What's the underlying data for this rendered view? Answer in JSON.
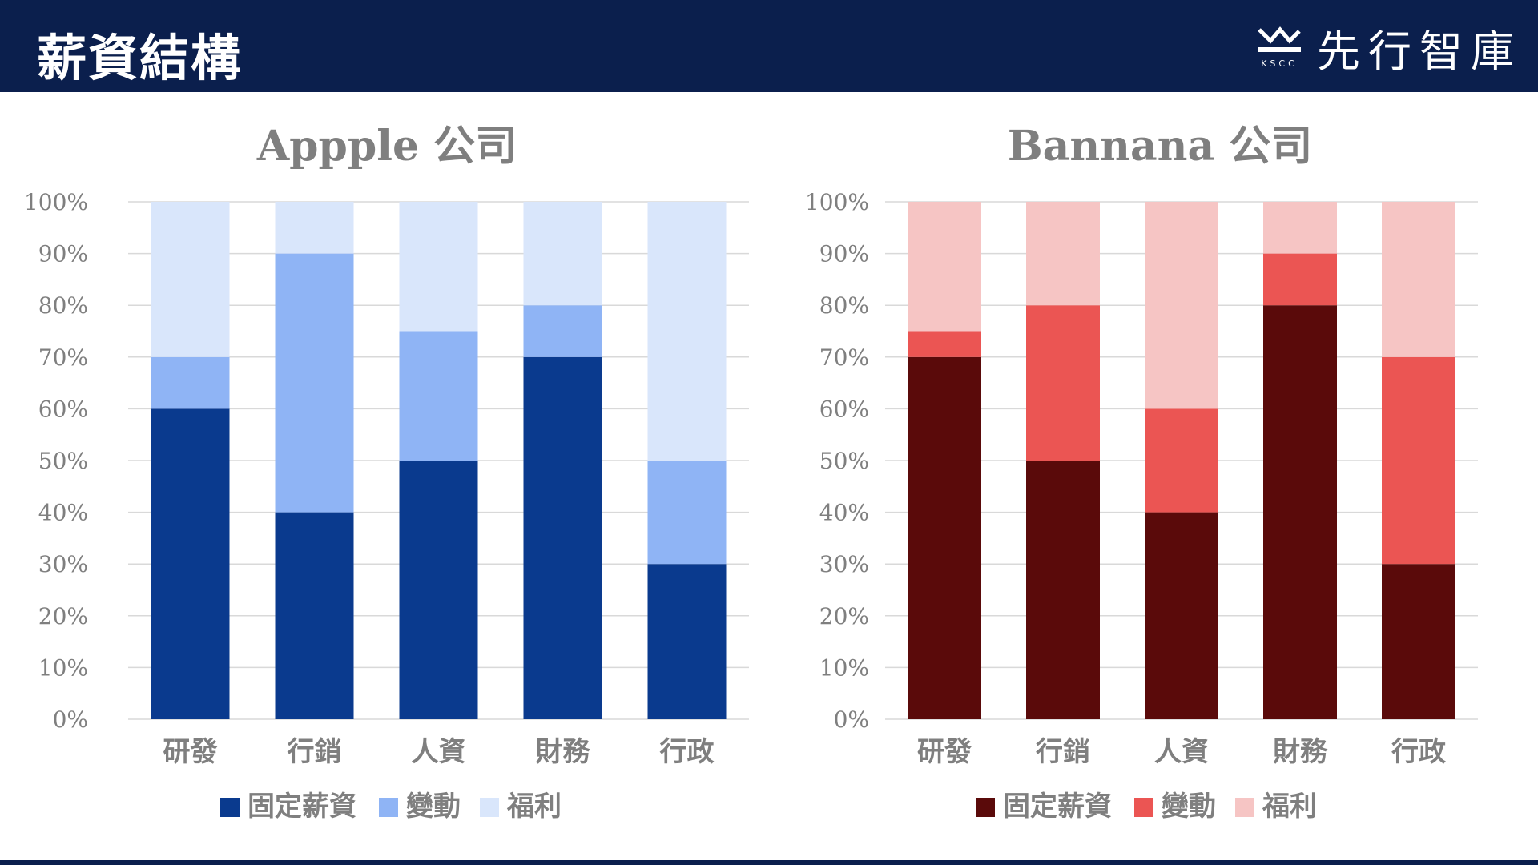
{
  "header": {
    "title": "薪資結構",
    "brand_name": "先行智庫",
    "brand_logo_text": "KSCC",
    "background": "#0b1f4d"
  },
  "chart_data": [
    {
      "type": "bar",
      "stacked": true,
      "title": "Appple 公司",
      "categories": [
        "研發",
        "行銷",
        "人資",
        "財務",
        "行政"
      ],
      "series": [
        {
          "name": "固定薪資",
          "values": [
            60,
            40,
            50,
            70,
            30
          ],
          "color": "#0a3a8e"
        },
        {
          "name": "變動",
          "values": [
            10,
            50,
            25,
            10,
            20
          ],
          "color": "#8fb4f5"
        },
        {
          "name": "福利",
          "values": [
            30,
            10,
            25,
            20,
            50
          ],
          "color": "#d9e6fb"
        }
      ],
      "ylim": [
        0,
        100
      ],
      "yticks": [
        "0%",
        "10%",
        "20%",
        "30%",
        "40%",
        "50%",
        "60%",
        "70%",
        "80%",
        "90%",
        "100%"
      ],
      "grid": true,
      "legend": "bottom"
    },
    {
      "type": "bar",
      "stacked": true,
      "title": "Bannana 公司",
      "categories": [
        "研發",
        "行銷",
        "人資",
        "財務",
        "行政"
      ],
      "series": [
        {
          "name": "固定薪資",
          "values": [
            70,
            50,
            40,
            80,
            30
          ],
          "color": "#5a0a0a"
        },
        {
          "name": "變動",
          "values": [
            5,
            30,
            20,
            10,
            40
          ],
          "color": "#eb5553"
        },
        {
          "name": "福利",
          "values": [
            25,
            20,
            40,
            10,
            30
          ],
          "color": "#f6c5c4"
        }
      ],
      "ylim": [
        0,
        100
      ],
      "yticks": [
        "0%",
        "10%",
        "20%",
        "30%",
        "40%",
        "50%",
        "60%",
        "70%",
        "80%",
        "90%",
        "100%"
      ],
      "grid": true,
      "legend": "bottom"
    }
  ]
}
